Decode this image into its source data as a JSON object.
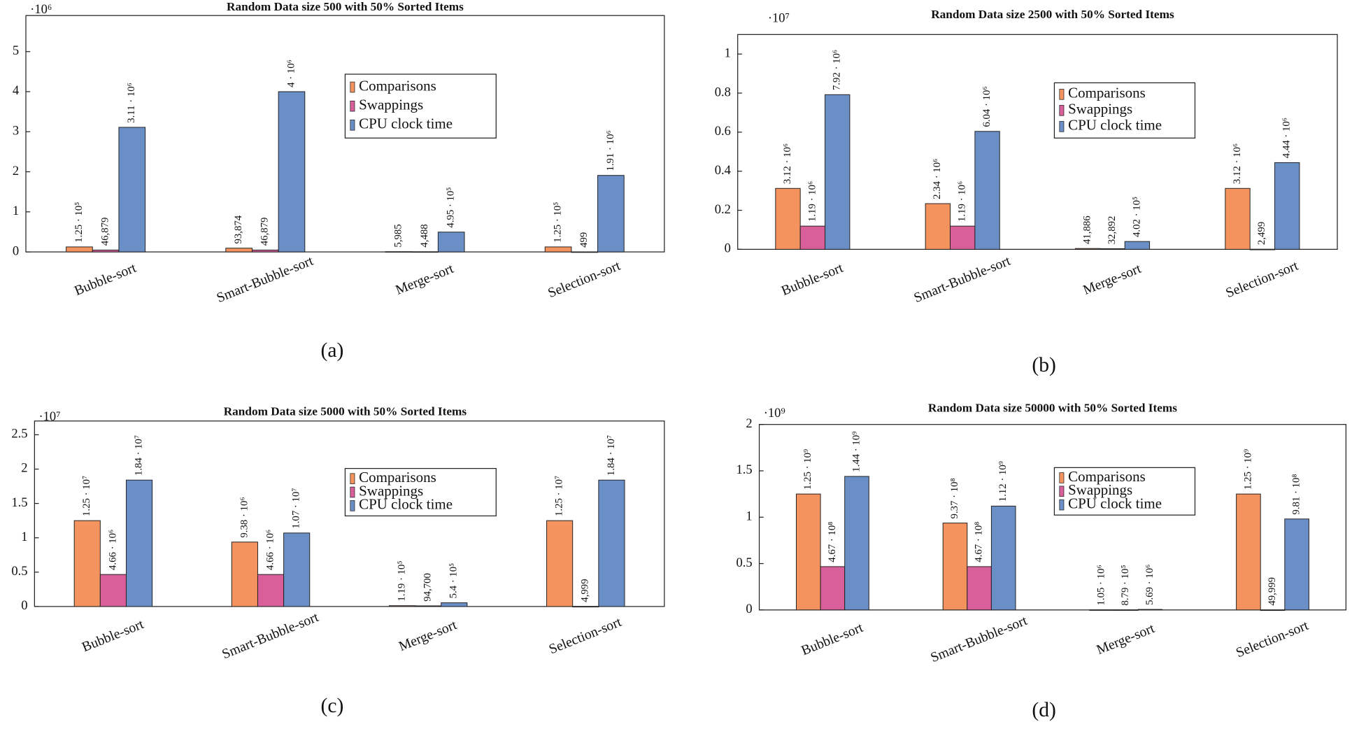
{
  "chart_data": [
    {
      "type": "bar",
      "title": "Random Data size 500 with 50% Sorted Items",
      "multiplier": "·10⁶",
      "panel": "(a)",
      "categories": [
        "Bubble-sort",
        "Smart-Bubble-sort",
        "Merge-sort",
        "Selection-sort"
      ],
      "series": [
        {
          "name": "Comparisons",
          "color": "#f4935e",
          "values": [
            0.125,
            0.093874,
            0.005985,
            0.125
          ],
          "value_labels": [
            "1.25 · 10⁵",
            "93,874",
            "5,985",
            "1.25 · 10⁵"
          ]
        },
        {
          "name": "Swappings",
          "color": "#d95f9b",
          "values": [
            0.046879,
            0.046879,
            0.004488,
            0.000499
          ],
          "value_labels": [
            "46,879",
            "46,879",
            "4,488",
            "499"
          ]
        },
        {
          "name": "CPU clock time",
          "color": "#6a8ec6",
          "values": [
            3.11,
            4,
            0.495,
            1.91
          ],
          "value_labels": [
            "3.11 · 10⁶",
            "4 · 10⁶",
            "4.95 · 10⁵",
            "1.91 · 10⁶"
          ]
        }
      ],
      "ylim": [
        0,
        5.9
      ],
      "yticks": [
        0,
        1,
        2,
        3,
        4,
        5
      ]
    },
    {
      "type": "bar",
      "title": "Random Data size 2500 with 50% Sorted Items",
      "multiplier": "·10⁷",
      "panel": "(b)",
      "categories": [
        "Bubble-sort",
        "Smart-Bubble-sort",
        "Merge-sort",
        "Selection-sort"
      ],
      "series": [
        {
          "name": "Comparisons",
          "color": "#f4935e",
          "values": [
            0.312,
            0.234,
            0.0041886,
            0.312
          ],
          "value_labels": [
            "3.12 · 10⁶",
            "2.34 · 10⁶",
            "41,886",
            "3.12 · 10⁶"
          ]
        },
        {
          "name": "Swappings",
          "color": "#d95f9b",
          "values": [
            0.119,
            0.119,
            0.0032892,
            0.0002499
          ],
          "value_labels": [
            "1.19 · 10⁶",
            "1.19 · 10⁶",
            "32,892",
            "2,499"
          ]
        },
        {
          "name": "CPU clock time",
          "color": "#6a8ec6",
          "values": [
            0.792,
            0.604,
            0.0402,
            0.444
          ],
          "value_labels": [
            "7.92 · 10⁶",
            "6.04 · 10⁶",
            "4.02 · 10⁵",
            "4.44 · 10⁶"
          ]
        }
      ],
      "ylim": [
        0,
        1.1
      ],
      "yticks": [
        0,
        0.2,
        0.4,
        0.6,
        0.8,
        1
      ]
    },
    {
      "type": "bar",
      "title": "Random Data size 5000 with 50% Sorted Items",
      "multiplier": "·10⁷",
      "panel": "(c)",
      "categories": [
        "Bubble-sort",
        "Smart-Bubble-sort",
        "Merge-sort",
        "Selection-sort"
      ],
      "series": [
        {
          "name": "Comparisons",
          "color": "#f4935e",
          "values": [
            1.25,
            0.938,
            0.0119,
            1.25
          ],
          "value_labels": [
            "1.25 · 10⁷",
            "9.38 · 10⁶",
            "1.19 · 10⁵",
            "1.25 · 10⁷"
          ]
        },
        {
          "name": "Swappings",
          "color": "#d95f9b",
          "values": [
            0.466,
            0.466,
            0.00947,
            0.0004999
          ],
          "value_labels": [
            "4.66 · 10⁶",
            "4.66 · 10⁶",
            "94,700",
            "4,999"
          ]
        },
        {
          "name": "CPU clock time",
          "color": "#6a8ec6",
          "values": [
            1.84,
            1.07,
            0.054,
            1.84
          ],
          "value_labels": [
            "1.84 · 10⁷",
            "1.07 · 10⁷",
            "5.4 · 10⁵",
            "1.84 · 10⁷"
          ]
        }
      ],
      "ylim": [
        0,
        2.7
      ],
      "yticks": [
        0,
        0.5,
        1,
        1.5,
        2,
        2.5
      ]
    },
    {
      "type": "bar",
      "title": "Random Data size 50000 with 50% Sorted Items",
      "multiplier": "·10⁹",
      "panel": "(d)",
      "categories": [
        "Bubble-sort",
        "Smart-Bubble-sort",
        "Merge-sort",
        "Selection-sort"
      ],
      "series": [
        {
          "name": "Comparisons",
          "color": "#f4935e",
          "values": [
            1.25,
            0.937,
            0.00105,
            1.25
          ],
          "value_labels": [
            "1.25 · 10⁹",
            "9.37 · 10⁸",
            "1.05 · 10⁶",
            "1.25 · 10⁹"
          ]
        },
        {
          "name": "Swappings",
          "color": "#d95f9b",
          "values": [
            0.467,
            0.467,
            0.000879,
            4.9999e-05
          ],
          "value_labels": [
            "4.67 · 10⁸",
            "4.67 · 10⁸",
            "8.79 · 10⁵",
            "49,999"
          ]
        },
        {
          "name": "CPU clock time",
          "color": "#6a8ec6",
          "values": [
            1.44,
            1.12,
            0.00569,
            0.981
          ],
          "value_labels": [
            "1.44 · 10⁹",
            "1.12 · 10⁹",
            "5.69 · 10⁶",
            "9.81 · 10⁸"
          ]
        }
      ],
      "ylim": [
        0,
        2
      ],
      "yticks": [
        0,
        0.5,
        1,
        1.5,
        2
      ]
    }
  ]
}
